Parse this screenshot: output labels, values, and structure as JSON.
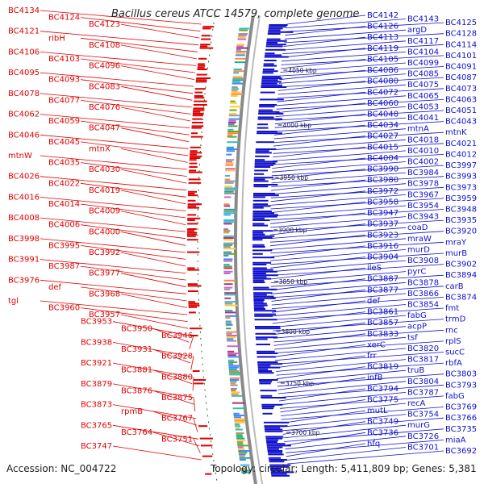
{
  "title": "Bacillus cereus ATCC 14579, complete genome",
  "footer": {
    "accession": "Accession: NC_004722",
    "summary": "Topology: circular; Length: 5,411,809 bp; Genes: 5,381"
  },
  "colors": {
    "forward_strand": "#e00000",
    "reverse_strand": "#1010cc",
    "backbone": "#8a8a8a",
    "tick": "#1a7a1a"
  },
  "scale_ticks": [
    "4050 kbp",
    "4000 kbp",
    "3950 kbp",
    "3900 kbp",
    "3850 kbp",
    "3800 kbp",
    "3750 kbp",
    "3700 kbp"
  ],
  "left_labels": [
    "BC4134",
    "BC4124",
    "BC4123",
    "BC4121",
    "ribH",
    "BC4108",
    "BC4106",
    "BC4103",
    "BC4096",
    "BC4095",
    "BC4093",
    "BC4083",
    "BC4078",
    "BC4077",
    "BC4076",
    "BC4062",
    "BC4059",
    "BC4047",
    "BC4046",
    "BC4045",
    "mtnX",
    "mtnW",
    "BC4035",
    "BC4030",
    "BC4026",
    "BC4022",
    "BC4019",
    "BC4016",
    "BC4014",
    "BC4009",
    "BC4008",
    "BC4006",
    "BC4000",
    "BC3998",
    "BC3995",
    "BC3992",
    "BC3991",
    "BC3987",
    "BC3977",
    "BC3976",
    "def",
    "BC3968",
    "tgl",
    "BC3960",
    "BC3957",
    "BC3953",
    "BC3950",
    "BC3946",
    "BC3938",
    "BC3931",
    "BC3928",
    "BC3921",
    "BC3881",
    "BC3880",
    "BC3879",
    "BC3876",
    "BC3875",
    "BC3873",
    "rpmB",
    "BC3767",
    "BC3765",
    "BC3764",
    "BC3751",
    "BC3747"
  ],
  "right_labels": [
    "BC4142",
    "BC4143",
    "BC4125",
    "BC4126",
    "argD",
    "BC4128",
    "BC4113",
    "BC4117",
    "BC4114",
    "BC4119",
    "BC4104",
    "BC4101",
    "BC4105",
    "BC4099",
    "BC4091",
    "BC4086",
    "BC4085",
    "BC4087",
    "BC4080",
    "BC4075",
    "BC4073",
    "BC4072",
    "BC4065",
    "BC4063",
    "BC4060",
    "BC4053",
    "BC4051",
    "BC4048",
    "BC4041",
    "BC4043",
    "BC4034",
    "mtnA",
    "mtnK",
    "BC4027",
    "BC4018",
    "BC4021",
    "BC4015",
    "BC4010",
    "BC4012",
    "BC4004",
    "BC4002",
    "BC3997",
    "BC3990",
    "BC3984",
    "BC3993",
    "BC3980",
    "BC3978",
    "BC3973",
    "BC3972",
    "BC3967",
    "BC3959",
    "BC3958",
    "BC3954",
    "BC3948",
    "BC3947",
    "BC3943",
    "BC3935",
    "BC3937",
    "coaD",
    "BC3920",
    "BC3923",
    "mraW",
    "mraY",
    "BC3916",
    "murD",
    "murB",
    "BC3904",
    "BC3908",
    "BC3902",
    "ileS",
    "pyrC",
    "BC3894",
    "BC3887",
    "BC3878",
    "carB",
    "BC3877",
    "BC3866",
    "BC3874",
    "def",
    "BC3854",
    "fmt",
    "BC3861",
    "fabG",
    "trmD",
    "BC3857",
    "acpP",
    "rnc",
    "BC3833",
    "tsf",
    "rplS",
    "xerC",
    "BC3820",
    "sucC",
    "frr",
    "BC3817",
    "rbfA",
    "BC3819",
    "truB",
    "BC3803",
    "infB",
    "BC3804",
    "BC3793",
    "BC3794",
    "BC3787",
    "fabG",
    "BC3775",
    "recA",
    "BC3769",
    "mutL",
    "BC3754",
    "BC3766",
    "BC3749",
    "murG",
    "BC3735",
    "BC3736",
    "BC3726",
    "miaA",
    "hfq",
    "BC3701",
    "BC3692"
  ]
}
